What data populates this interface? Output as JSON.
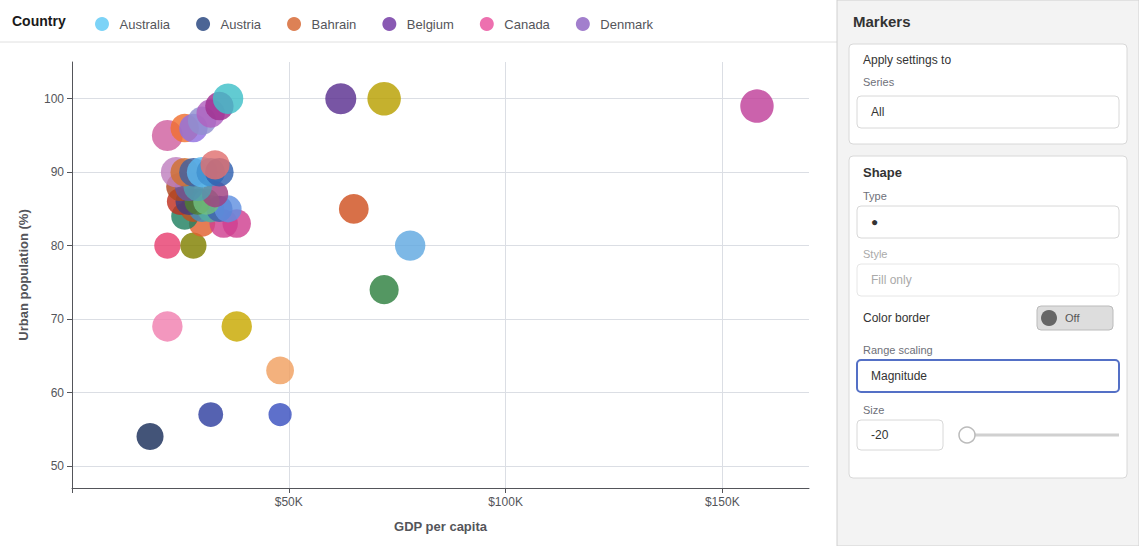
{
  "chart_data": {
    "type": "scatter",
    "xlabel": "GDP per capita",
    "ylabel": "Urban population (%)",
    "x": [
      18000,
      32000,
      48000,
      48000,
      22000,
      38000,
      22000,
      28000,
      30000,
      35000,
      38000,
      26000,
      28000,
      30000,
      32000,
      34000,
      36000,
      25000,
      27000,
      29000,
      31000,
      33000,
      25000,
      27000,
      29000,
      24000,
      26000,
      28000,
      30000,
      32000,
      34000,
      33000,
      22000,
      26000,
      28000,
      30000,
      32000,
      34000,
      36000,
      62000,
      72000,
      65000,
      78000,
      72000,
      158000
    ],
    "values": [
      54,
      57,
      63,
      57,
      69,
      69,
      80,
      80,
      83,
      83,
      83,
      84,
      85,
      85,
      85,
      85,
      85,
      86,
      86,
      86,
      86,
      87,
      88,
      88,
      88,
      90,
      90,
      90,
      90,
      90,
      90,
      91,
      95,
      96,
      96,
      97,
      98,
      99,
      100,
      100,
      100,
      85,
      80,
      74,
      99
    ],
    "sizes": [
      380,
      320,
      400,
      280,
      480,
      480,
      360,
      360,
      360,
      420,
      420,
      380,
      360,
      360,
      380,
      360,
      380,
      380,
      380,
      360,
      360,
      360,
      420,
      420,
      420,
      480,
      420,
      420,
      480,
      420,
      420,
      440,
      500,
      420,
      420,
      420,
      420,
      420,
      480,
      500,
      580,
      460,
      480,
      440,
      580
    ],
    "colors": [
      "#1a2e5a",
      "#3040a0",
      "#f0a060",
      "#3a50c0",
      "#f080b0",
      "#c8a800",
      "#e84070",
      "#808000",
      "#e06030",
      "#d04090",
      "#d04090",
      "#208060",
      "#c05020",
      "#4090c0",
      "#50b0a0",
      "#4060b0",
      "#6090e0",
      "#c03020",
      "#404080",
      "#508030",
      "#70c080",
      "#a04080",
      "#b04820",
      "#6858a0",
      "#50a0b0",
      "#c080c0",
      "#d07030",
      "#4060a0",
      "#5ab8f0",
      "#4090d0",
      "#3060b0",
      "#e07070",
      "#d060a0",
      "#f07030",
      "#9070e0",
      "#9090d0",
      "#b060c0",
      "#a03090",
      "#40c0c8",
      "#5a3090",
      "#b8a000",
      "#d05020",
      "#60a8e0",
      "#2e8040",
      "#c0409a"
    ],
    "xlim": [
      0,
      170000
    ],
    "ylim": [
      47,
      105
    ],
    "xticks": [
      {
        "value": 0,
        "label": null
      },
      {
        "value": 50000,
        "label": "$50K"
      },
      {
        "value": 100000,
        "label": "$100K"
      },
      {
        "value": 150000,
        "label": "$150K"
      }
    ],
    "yticks": [
      50,
      60,
      70,
      80,
      90,
      100
    ],
    "grid": true,
    "legend": "top",
    "legend_title": "Country",
    "legend_entries": [
      {
        "name": "Australia",
        "color": "#5bc8f5"
      },
      {
        "name": "Austria",
        "color": "#1f3f7a"
      },
      {
        "name": "Bahrain",
        "color": "#d4622a"
      },
      {
        "name": "Belgium",
        "color": "#6b2fa0"
      },
      {
        "name": "Canada",
        "color": "#e84c9b"
      },
      {
        "name": "Denmark",
        "color": "#8b5fc0"
      }
    ],
    "annotations": [
      "Markers",
      "Apply settings to",
      "Series",
      "All",
      "Shape",
      "Type",
      "●",
      "Style",
      "Fill only",
      "Color border",
      "Off",
      "Range scaling",
      "Magnitude",
      "Size",
      "-20"
    ]
  }
}
